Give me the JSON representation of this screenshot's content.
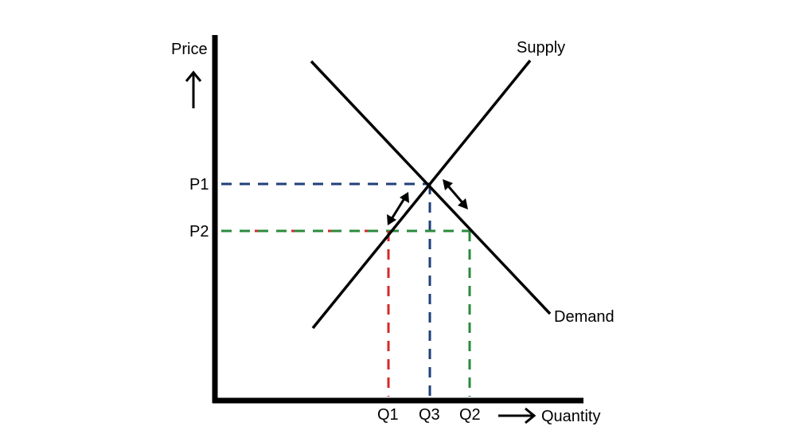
{
  "axes": {
    "y_label": "Price",
    "x_label": "Quantity"
  },
  "curves": {
    "supply_label": "Supply",
    "demand_label": "Demand"
  },
  "price_ticks": {
    "p1": "P1",
    "p2": "P2"
  },
  "quantity_ticks": {
    "q1": "Q1",
    "q3": "Q3",
    "q2": "Q2"
  },
  "colors": {
    "lines": "#000000",
    "p1_guide": "#1f3f7a",
    "p2_guide": "#2a8a3c",
    "q1_guide": "#d42a2a"
  },
  "icons": {
    "price_arrow": "arrow-up-icon",
    "quantity_arrow": "arrow-right-icon",
    "adjustment_arrows": "double-arrow-icon"
  }
}
